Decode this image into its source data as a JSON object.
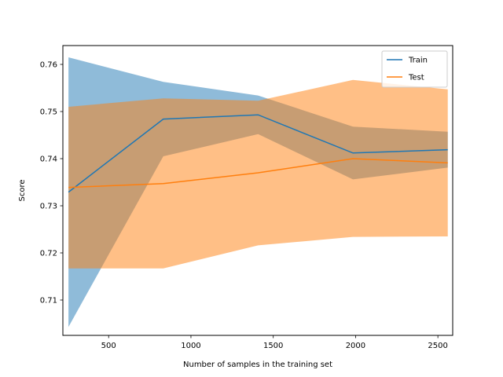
{
  "chart_data": {
    "type": "line",
    "xlabel": "Number of samples in the training set",
    "ylabel": "Score",
    "xlim": [
      222,
      2590
    ],
    "ylim": [
      0.7025,
      0.764
    ],
    "xticks": [
      500,
      1000,
      1500,
      2000,
      2500
    ],
    "xtick_labels": [
      "500",
      "1000",
      "1500",
      "2000",
      "2500"
    ],
    "yticks": [
      0.71,
      0.72,
      0.73,
      0.74,
      0.75,
      0.76
    ],
    "ytick_labels": [
      "0.71",
      "0.72",
      "0.73",
      "0.74",
      "0.75",
      "0.76"
    ],
    "grid": false,
    "legend_position": "top-right",
    "x": [
      256,
      832,
      1408,
      1984,
      2560
    ],
    "series": [
      {
        "name": "Train",
        "color": "#1f77b4",
        "band_color": "#1f77b4",
        "values": [
          0.7329,
          0.7484,
          0.7493,
          0.7412,
          0.7419
        ],
        "upper": [
          0.7615,
          0.7563,
          0.7534,
          0.7468,
          0.7457
        ],
        "lower": [
          0.7043,
          0.7405,
          0.7452,
          0.7356,
          0.7381
        ]
      },
      {
        "name": "Test",
        "color": "#ff7f0e",
        "band_color": "#ff7f0e",
        "values": [
          0.7339,
          0.7347,
          0.737,
          0.74,
          0.7391
        ],
        "upper": [
          0.751,
          0.7528,
          0.7523,
          0.7567,
          0.7547
        ],
        "lower": [
          0.7167,
          0.7167,
          0.7216,
          0.7234,
          0.7235
        ]
      }
    ]
  }
}
